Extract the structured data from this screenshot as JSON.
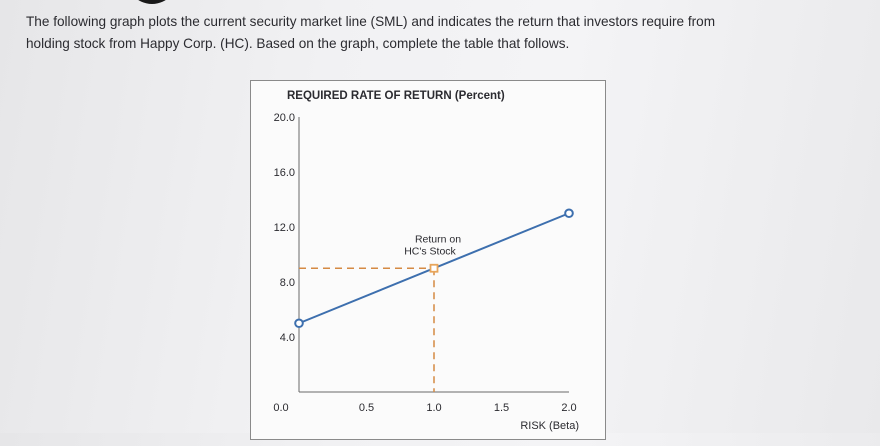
{
  "question": {
    "line1": "The following graph plots the current security market line (SML) and indicates the return that investors require from",
    "line2": "holding stock from Happy Corp. (HC). Based on the graph, complete the table that follows."
  },
  "colors": {
    "sml_line": "#3d6fae",
    "dashed_guides": "#d58a43",
    "hc_marker": "#e8a55a",
    "axis": "#6a6a6a",
    "text": "#2b2b30"
  },
  "chart_data": {
    "type": "line",
    "ylabel": "REQUIRED RATE OF RETURN (Percent)",
    "xlabel": "RISK (Beta)",
    "xlim": [
      0.0,
      2.0
    ],
    "ylim": [
      0.0,
      20.0
    ],
    "x_ticks": [
      "0.0",
      "0.5",
      "1.0",
      "1.5",
      "2.0"
    ],
    "y_ticks": [
      "4.0",
      "8.0",
      "12.0",
      "16.0",
      "20.0"
    ],
    "series": [
      {
        "points": [
          [
            0.0,
            5.0
          ],
          [
            2.0,
            13.0
          ]
        ]
      }
    ],
    "annotations": [
      {
        "label_line1": "Return on",
        "label_line2": "HC's Stock",
        "x": 1.0,
        "y": 9.0
      }
    ]
  }
}
